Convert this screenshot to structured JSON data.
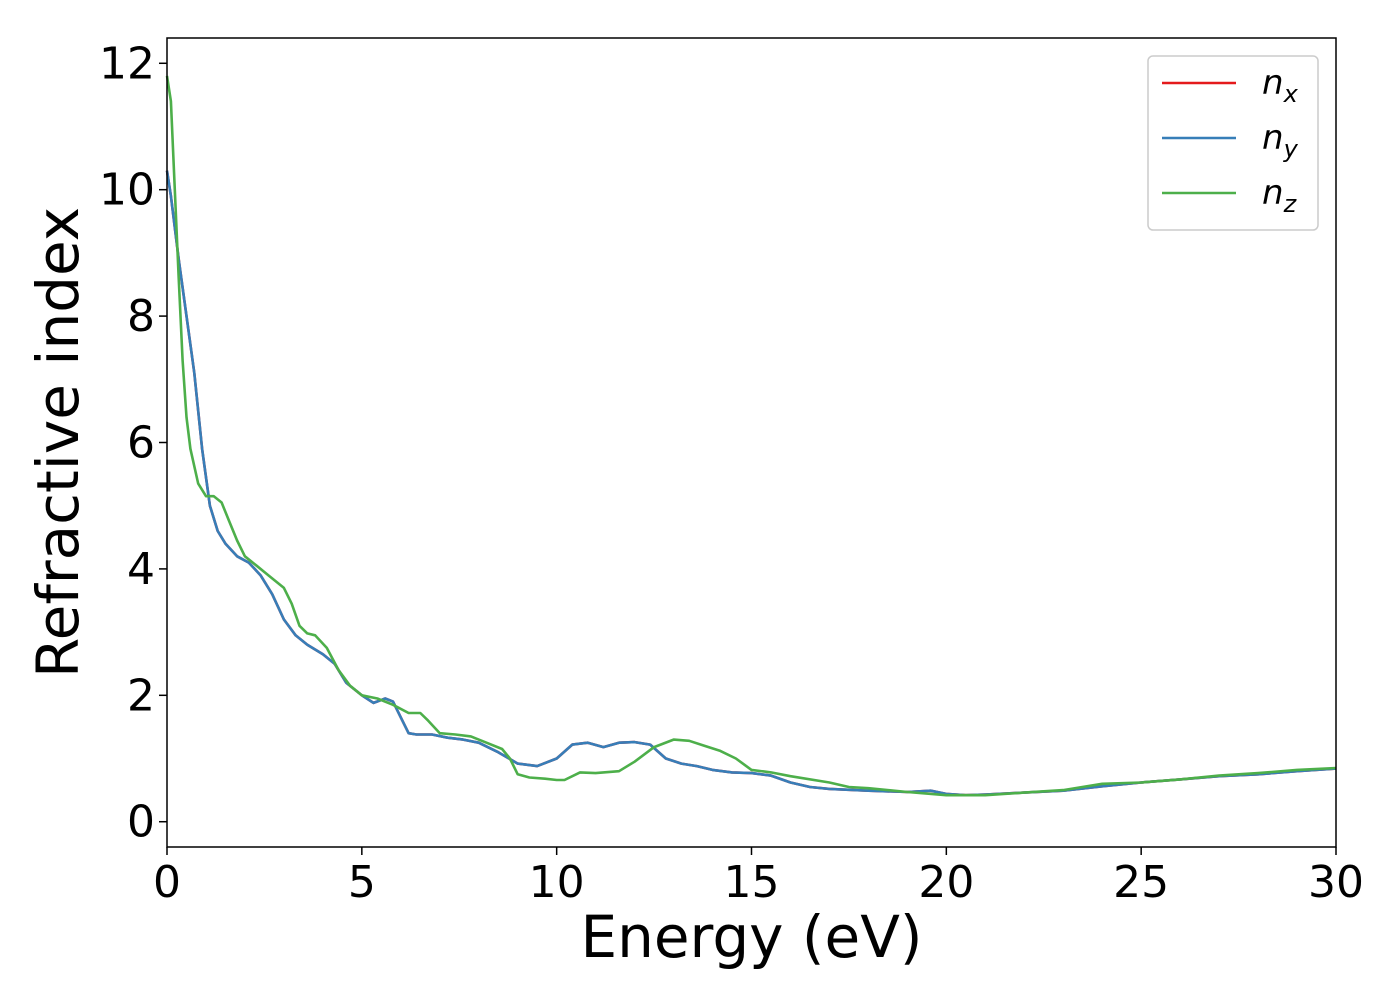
{
  "chart_data": {
    "type": "line",
    "xlabel": "Energy (eV)",
    "ylabel": "Refractive index",
    "xlim": [
      0,
      30
    ],
    "ylim": [
      -0.4,
      12.4
    ],
    "xticks": [
      "0",
      "5",
      "10",
      "15",
      "20",
      "25",
      "30"
    ],
    "yticks": [
      "0",
      "2",
      "4",
      "6",
      "8",
      "10",
      "12"
    ],
    "xtick_values": [
      0,
      5,
      10,
      15,
      20,
      25,
      30
    ],
    "ytick_values": [
      0,
      2,
      4,
      6,
      8,
      10,
      12
    ],
    "grid": false,
    "legend_position": "top-right",
    "series": [
      {
        "name": "n",
        "subscript": "x",
        "color": "#e41a1c",
        "x": [
          0,
          0.1,
          0.3,
          0.5,
          0.7,
          0.9,
          1.1,
          1.3,
          1.5,
          1.8,
          2.1,
          2.4,
          2.7,
          3.0,
          3.3,
          3.6,
          4.0,
          4.3,
          4.6,
          5.0,
          5.3,
          5.6,
          5.8,
          6.0,
          6.2,
          6.4,
          6.8,
          7.2,
          7.6,
          8.0,
          8.5,
          9.0,
          9.5,
          10.0,
          10.4,
          10.8,
          11.2,
          11.6,
          12.0,
          12.4,
          12.8,
          13.2,
          13.6,
          14.0,
          14.5,
          15.0,
          15.5,
          16.0,
          16.5,
          17.0,
          18.0,
          19.0,
          19.6,
          20.0,
          20.5,
          21.0,
          22.0,
          23.0,
          24.0,
          25.0,
          26.0,
          27.0,
          28.0,
          29.0,
          30.0
        ],
        "values": [
          10.3,
          9.9,
          8.9,
          8.0,
          7.1,
          5.9,
          5.0,
          4.6,
          4.4,
          4.2,
          4.1,
          3.9,
          3.6,
          3.2,
          2.95,
          2.8,
          2.65,
          2.5,
          2.2,
          2.0,
          1.88,
          1.95,
          1.9,
          1.65,
          1.4,
          1.38,
          1.38,
          1.33,
          1.3,
          1.25,
          1.1,
          0.92,
          0.88,
          1.0,
          1.22,
          1.25,
          1.18,
          1.25,
          1.26,
          1.22,
          1.0,
          0.92,
          0.88,
          0.82,
          0.78,
          0.77,
          0.73,
          0.62,
          0.55,
          0.52,
          0.49,
          0.47,
          0.49,
          0.44,
          0.42,
          0.43,
          0.46,
          0.49,
          0.56,
          0.62,
          0.67,
          0.72,
          0.75,
          0.8,
          0.84
        ]
      },
      {
        "name": "n",
        "subscript": "y",
        "color": "#377eb8",
        "x": [
          0,
          0.1,
          0.3,
          0.5,
          0.7,
          0.9,
          1.1,
          1.3,
          1.5,
          1.8,
          2.1,
          2.4,
          2.7,
          3.0,
          3.3,
          3.6,
          4.0,
          4.3,
          4.6,
          5.0,
          5.3,
          5.6,
          5.8,
          6.0,
          6.2,
          6.4,
          6.8,
          7.2,
          7.6,
          8.0,
          8.5,
          9.0,
          9.5,
          10.0,
          10.4,
          10.8,
          11.2,
          11.6,
          12.0,
          12.4,
          12.8,
          13.2,
          13.6,
          14.0,
          14.5,
          15.0,
          15.5,
          16.0,
          16.5,
          17.0,
          18.0,
          19.0,
          19.6,
          20.0,
          20.5,
          21.0,
          22.0,
          23.0,
          24.0,
          25.0,
          26.0,
          27.0,
          28.0,
          29.0,
          30.0
        ],
        "values": [
          10.3,
          9.9,
          8.9,
          8.0,
          7.1,
          5.9,
          5.0,
          4.6,
          4.4,
          4.2,
          4.1,
          3.9,
          3.6,
          3.2,
          2.95,
          2.8,
          2.65,
          2.5,
          2.2,
          2.0,
          1.88,
          1.95,
          1.9,
          1.65,
          1.4,
          1.38,
          1.38,
          1.33,
          1.3,
          1.25,
          1.1,
          0.92,
          0.88,
          1.0,
          1.22,
          1.25,
          1.18,
          1.25,
          1.26,
          1.22,
          1.0,
          0.92,
          0.88,
          0.82,
          0.78,
          0.77,
          0.73,
          0.62,
          0.55,
          0.52,
          0.49,
          0.47,
          0.49,
          0.44,
          0.42,
          0.43,
          0.46,
          0.49,
          0.56,
          0.62,
          0.67,
          0.72,
          0.75,
          0.8,
          0.84
        ]
      },
      {
        "name": "n",
        "subscript": "z",
        "color": "#4daf4a",
        "x": [
          0,
          0.1,
          0.2,
          0.3,
          0.4,
          0.5,
          0.6,
          0.8,
          1.0,
          1.2,
          1.4,
          1.6,
          1.8,
          2.0,
          2.3,
          2.6,
          3.0,
          3.2,
          3.4,
          3.6,
          3.8,
          4.1,
          4.4,
          4.7,
          5.0,
          5.4,
          5.8,
          6.2,
          6.5,
          6.7,
          7.0,
          7.4,
          7.8,
          8.2,
          8.6,
          8.8,
          9.0,
          9.3,
          9.7,
          10.0,
          10.2,
          10.6,
          11.0,
          11.6,
          12.0,
          12.5,
          13.0,
          13.4,
          13.8,
          14.2,
          14.6,
          15.0,
          15.5,
          16.0,
          17.0,
          17.5,
          18.0,
          19.0,
          20.0,
          21.0,
          22.0,
          23.0,
          24.0,
          25.0,
          26.0,
          27.0,
          28.0,
          29.0,
          30.0
        ],
        "values": [
          11.8,
          11.4,
          10.0,
          8.6,
          7.3,
          6.4,
          5.9,
          5.35,
          5.15,
          5.15,
          5.05,
          4.75,
          4.45,
          4.2,
          4.05,
          3.9,
          3.7,
          3.45,
          3.1,
          2.98,
          2.95,
          2.75,
          2.4,
          2.15,
          2.0,
          1.95,
          1.85,
          1.72,
          1.72,
          1.6,
          1.4,
          1.38,
          1.35,
          1.25,
          1.15,
          1.0,
          0.75,
          0.7,
          0.68,
          0.66,
          0.66,
          0.78,
          0.77,
          0.8,
          0.95,
          1.18,
          1.3,
          1.28,
          1.2,
          1.12,
          1.0,
          0.82,
          0.78,
          0.72,
          0.62,
          0.55,
          0.53,
          0.47,
          0.42,
          0.42,
          0.46,
          0.5,
          0.6,
          0.62,
          0.67,
          0.73,
          0.77,
          0.82,
          0.85
        ]
      }
    ]
  }
}
